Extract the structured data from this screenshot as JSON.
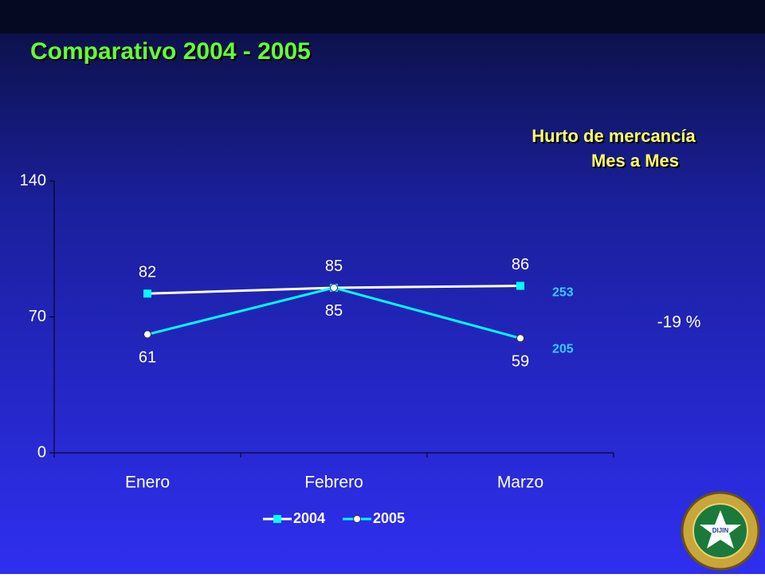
{
  "chart_data": {
    "type": "line",
    "title": "Comparativo 2004 - 2005",
    "subtitle": [
      "Hurto de mercancía",
      "Mes a Mes"
    ],
    "categories": [
      "Enero",
      "Febrero",
      "Marzo"
    ],
    "series": [
      {
        "name": "2004",
        "color": "#ffffff",
        "marker": "square",
        "marker_color": "#00ffff",
        "values": [
          82,
          85,
          86
        ],
        "total": 253
      },
      {
        "name": "2005",
        "color": "#00ffff",
        "marker": "circle",
        "marker_color": "#ffffff",
        "values": [
          61,
          85,
          59
        ],
        "total": 205
      }
    ],
    "change_annotation": "-19 %",
    "ylim": [
      0,
      140
    ],
    "yticks": [
      0,
      70,
      140
    ],
    "grid": false,
    "legend": "bottom"
  },
  "logo": {
    "text": "DIJIN"
  }
}
